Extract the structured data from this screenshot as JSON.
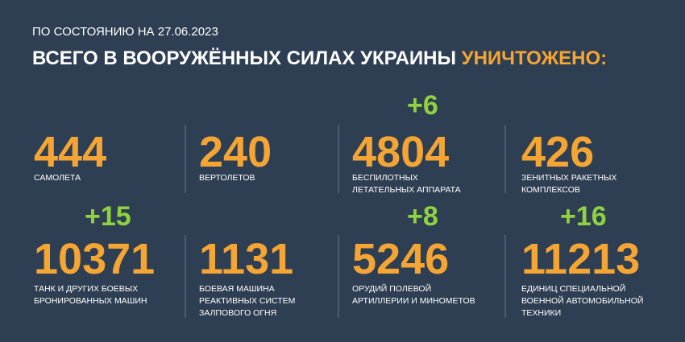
{
  "header": {
    "date_line": "ПО СОСТОЯНИЮ НА 27.06.2023",
    "title": "ВСЕГО В ВООРУЖЁННЫХ СИЛАХ УКРАИНЫ",
    "title_highlight": "УНИЧТОЖЕНО:"
  },
  "items": [
    {
      "value": 444,
      "label": [
        "САМОЛЕТА"
      ]
    },
    {
      "value": 240,
      "label": [
        "ВЕРТОЛЕТОВ"
      ]
    },
    {
      "value": 4804,
      "label": [
        "БЕСПИЛОТНЫХ",
        "ЛЕТАТЕЛЬНЫХ АППАРАТА"
      ],
      "increment": "+6"
    },
    {
      "value": 426,
      "label": [
        "ЗЕНИТНЫХ РАКЕТНЫХ",
        "КОМПЛЕКСОВ"
      ]
    },
    {
      "value": 10371,
      "label": [
        "ТАНК И ДРУГИХ БОЕВЫХ",
        "БРОНИРОВАННЫХ МАШИН"
      ],
      "increment": "+15"
    },
    {
      "value": 1131,
      "label": [
        "БОЕВАЯ МАШИНА",
        "РЕАКТИВНЫХ СИСТЕМ",
        "ЗАЛПОВОГО ОГНЯ"
      ]
    },
    {
      "value": 5246,
      "label": [
        "ОРУДИЙ ПОЛЕВОЙ",
        "АРТИЛЛЕРИИ И МИНОМЕТОВ"
      ],
      "increment": "+8"
    },
    {
      "value": 11213,
      "label": [
        "ЕДИНИЦ СПЕЦИАЛЬНОЙ",
        "ВОЕННОЙ АВТОМОБИЛЬНОЙ",
        "ТЕХНИКИ"
      ],
      "increment": "+16"
    }
  ]
}
